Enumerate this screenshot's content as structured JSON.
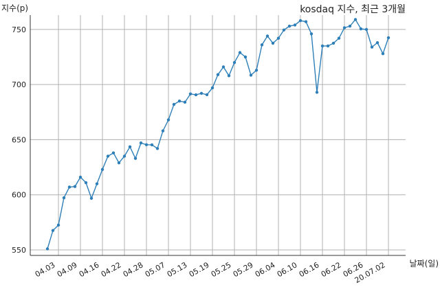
{
  "chart_data": {
    "type": "line",
    "title": "kosdaq 지수, 최근 3개월",
    "ylabel": "지수(p)",
    "xlabel": "날짜(일)",
    "ylim": [
      545,
      763
    ],
    "yticks": [
      550,
      600,
      650,
      700,
      750
    ],
    "grid": true,
    "x_ticks": [
      "04.03",
      "04.09",
      "04.16",
      "04.22",
      "04.28",
      "05.07",
      "05.13",
      "05.19",
      "05.25",
      "05.29",
      "06.04",
      "06.10",
      "06.16",
      "06.22",
      "06.26",
      "20.07.02"
    ],
    "x_tick_index": [
      2,
      6,
      10,
      14,
      18,
      22,
      26,
      30,
      34,
      38,
      42,
      46,
      50,
      54,
      58,
      62
    ],
    "values": [
      551.0,
      567.6,
      572.5,
      597.3,
      607.0,
      607.5,
      616.0,
      611.0,
      596.8,
      610.0,
      623.0,
      635.0,
      638.0,
      629.0,
      635.0,
      643.5,
      633.0,
      647.0,
      645.4,
      645.3,
      642.0,
      658.0,
      668.0,
      682.0,
      685.0,
      684.0,
      691.5,
      690.7,
      692.0,
      690.8,
      697.0,
      709.0,
      716.0,
      708.0,
      720.0,
      729.0,
      725.0,
      708.5,
      713.0,
      736.0,
      744.0,
      737.5,
      742.0,
      749.5,
      753.0,
      754.0,
      758.0,
      757.0,
      746.0,
      693.0,
      735.0,
      735.0,
      737.5,
      742.0,
      751.5,
      753.0,
      759.0,
      750.5,
      750.0,
      734.0,
      738.0,
      728.0,
      742.5
    ]
  }
}
